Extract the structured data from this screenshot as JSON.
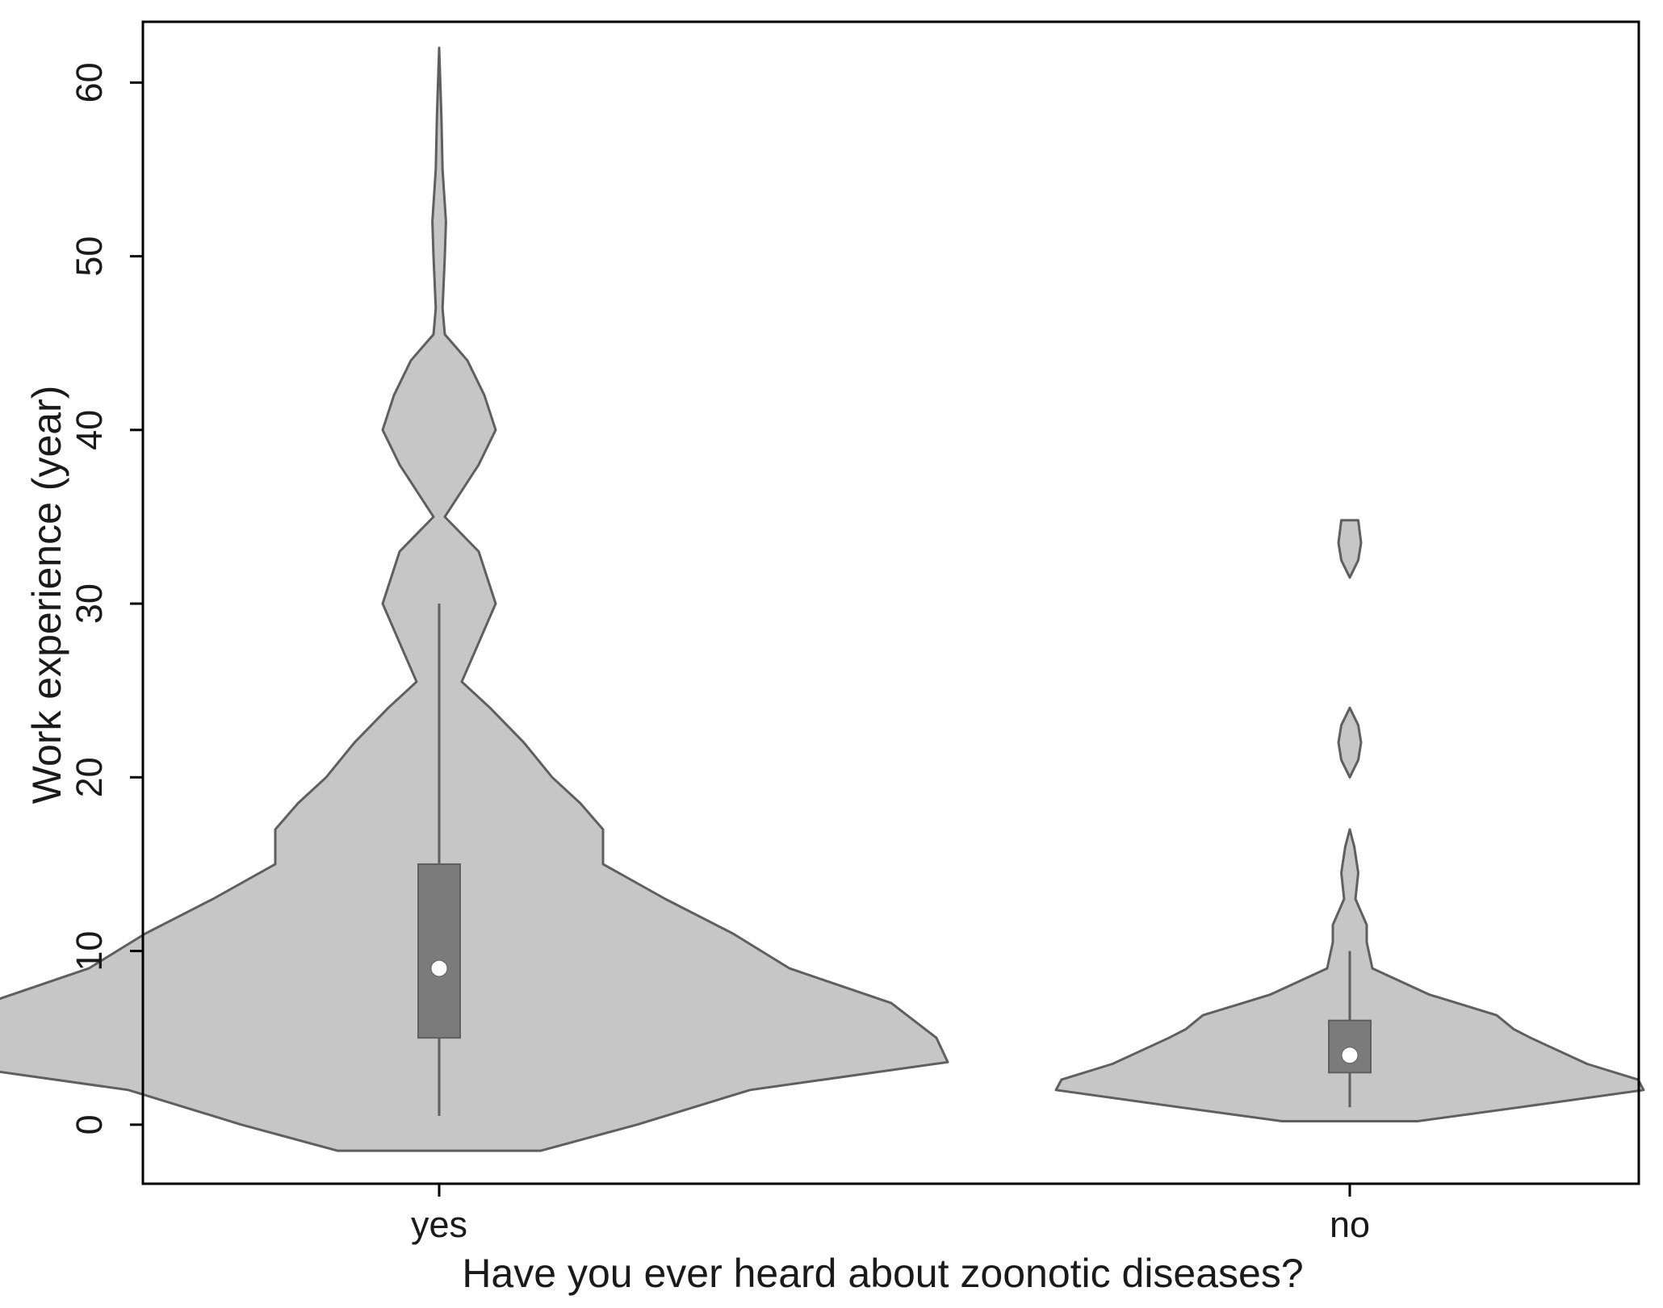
{
  "chart_data": {
    "type": "violin",
    "title": "",
    "xlabel": "Have you ever heard about zoonotic diseases?",
    "ylabel": "Work experience (year)",
    "ylim": [
      -3.4,
      63.5
    ],
    "yticks": [
      0,
      10,
      20,
      30,
      40,
      50,
      60
    ],
    "categories": [
      "yes",
      "no"
    ],
    "grid": false,
    "legend": "none",
    "colors": {
      "violin_fill": "#c6c6c6",
      "violin_stroke": "#5f5f5f",
      "box_fill": "#7b7b7b",
      "median_marker": "#ffffff",
      "axis": "#000000"
    },
    "series": [
      {
        "category": "yes",
        "range": [
          -1.5,
          62
        ],
        "median": 9,
        "q1": 5,
        "q3": 15,
        "whisker_low": 0.5,
        "whisker_high": 30,
        "density_half_width": [
          [
            -1.5,
            0.18
          ],
          [
            0,
            0.35
          ],
          [
            2,
            0.55
          ],
          [
            3.6,
            0.9
          ],
          [
            5,
            0.88
          ],
          [
            7,
            0.8
          ],
          [
            9,
            0.62
          ],
          [
            11,
            0.52
          ],
          [
            13,
            0.4
          ],
          [
            15,
            0.29
          ],
          [
            17,
            0.29
          ],
          [
            18.5,
            0.25
          ],
          [
            20,
            0.2
          ],
          [
            22,
            0.15
          ],
          [
            24,
            0.09
          ],
          [
            25.5,
            0.04
          ],
          [
            27,
            0.06
          ],
          [
            30,
            0.1
          ],
          [
            33,
            0.07
          ],
          [
            35,
            0.01
          ],
          [
            38,
            0.07
          ],
          [
            40,
            0.1
          ],
          [
            42,
            0.08
          ],
          [
            44,
            0.05
          ],
          [
            45.5,
            0.01
          ],
          [
            47,
            0.006
          ],
          [
            50,
            0.01
          ],
          [
            52,
            0.012
          ],
          [
            55,
            0.006
          ],
          [
            58,
            0.004
          ],
          [
            62,
            0.0
          ]
        ]
      },
      {
        "category": "no",
        "range": [
          0.2,
          34.8
        ],
        "median": 4,
        "q1": 3,
        "q3": 6,
        "whisker_low": 1,
        "whisker_high": 10,
        "density_half_width": [
          [
            0.2,
            0.12
          ],
          [
            1,
            0.3
          ],
          [
            2,
            0.52
          ],
          [
            2.6,
            0.51
          ],
          [
            3.5,
            0.42
          ],
          [
            5,
            0.32
          ],
          [
            5.5,
            0.29
          ],
          [
            6.3,
            0.26
          ],
          [
            7.5,
            0.14
          ],
          [
            9,
            0.04
          ],
          [
            10.5,
            0.03
          ],
          [
            11.5,
            0.03
          ],
          [
            13,
            0.01
          ],
          [
            14.5,
            0.015
          ],
          [
            16,
            0.008
          ],
          [
            17,
            0.0
          ],
          [
            null,
            null
          ],
          [
            20,
            0.0
          ],
          [
            21,
            0.015
          ],
          [
            22,
            0.02
          ],
          [
            23,
            0.015
          ],
          [
            24,
            0.0
          ],
          [
            null,
            null
          ],
          [
            31.5,
            0.0
          ],
          [
            32.5,
            0.015
          ],
          [
            33.5,
            0.02
          ],
          [
            34.8,
            0.015
          ]
        ]
      }
    ]
  }
}
